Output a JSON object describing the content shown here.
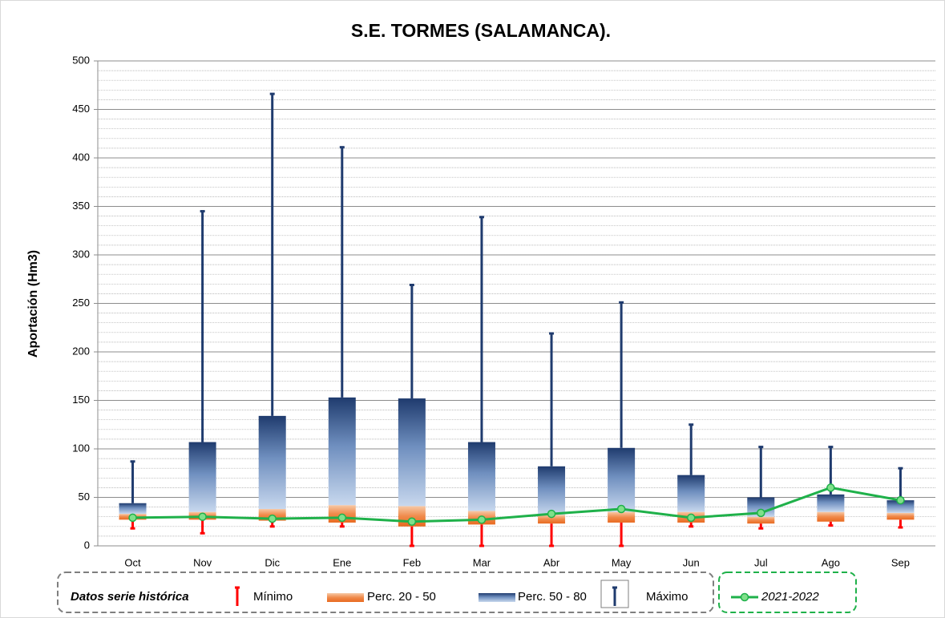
{
  "chart_data": {
    "type": "floating_box",
    "title": "S.E. TORMES (SALAMANCA).",
    "y_label": "Aportación (Hm3)",
    "legend_title": "Datos serie histórica",
    "categories": [
      "Oct",
      "Nov",
      "Dic",
      "Ene",
      "Feb",
      "Mar",
      "Abr",
      "May",
      "Jun",
      "Jul",
      "Ago",
      "Sep"
    ],
    "series": [
      {
        "name": "Mínimo",
        "color": "#ff0000",
        "values": [
          18,
          13,
          20,
          20,
          0,
          0,
          0,
          0,
          20,
          18,
          21,
          19
        ]
      },
      {
        "name": "Perc. 20 - 50",
        "color": "#f08a4b",
        "low": [
          27,
          27,
          26,
          24,
          20,
          22,
          23,
          24,
          24,
          23,
          25,
          27
        ],
        "values": [
          33,
          35,
          38,
          42,
          41,
          36,
          32,
          35,
          35,
          30,
          35,
          34
        ]
      },
      {
        "name": "Perc. 50 - 80",
        "color": "#1f3b6e",
        "values": [
          44,
          107,
          134,
          153,
          152,
          107,
          82,
          101,
          73,
          50,
          53,
          47
        ]
      },
      {
        "name": "Máximo",
        "color": "#1f3b6e",
        "values": [
          87,
          345,
          466,
          411,
          269,
          339,
          219,
          251,
          125,
          102,
          102,
          80
        ]
      },
      {
        "name": "2021-2022",
        "color": "#1fb14a",
        "values": [
          29,
          30,
          28,
          29,
          25,
          27,
          33,
          38,
          29,
          34,
          60,
          47
        ]
      }
    ],
    "ylim": [
      0,
      500
    ],
    "yticks": [
      0,
      50,
      100,
      150,
      200,
      250,
      300,
      350,
      400,
      450,
      500
    ],
    "minor_yticks": [
      10,
      20,
      30,
      40,
      60,
      70,
      80,
      90,
      110,
      120,
      130,
      140,
      160,
      170,
      180,
      190,
      210,
      220,
      230,
      240,
      260,
      270,
      280,
      290,
      310,
      320,
      330,
      340,
      360,
      370,
      380,
      390,
      410,
      420,
      430,
      440,
      460,
      470,
      480,
      490
    ],
    "grid": true
  }
}
